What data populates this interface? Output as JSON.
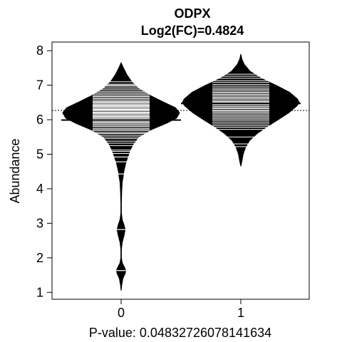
{
  "chart_data": {
    "type": "beanplot",
    "title": "ODPX",
    "subtitle": "Log2(FC)=0.4824",
    "ylabel": "Abundance",
    "xlabel": "P-value: 0.0483272607814163​4",
    "categories": [
      "0",
      "1"
    ],
    "yticks": [
      "1",
      "2",
      "3",
      "4",
      "5",
      "6",
      "7",
      "8"
    ],
    "ylim": [
      0.8,
      8.25
    ],
    "overall_mean": 6.27,
    "groups": [
      {
        "name": "0",
        "mean": 5.99,
        "median": 6.23,
        "range": [
          1.05,
          7.65
        ],
        "density": [
          [
            1.05,
            0.0
          ],
          [
            1.2,
            0.01
          ],
          [
            1.4,
            0.03
          ],
          [
            1.55,
            0.07
          ],
          [
            1.63,
            0.08
          ],
          [
            1.72,
            0.06
          ],
          [
            1.85,
            0.02
          ],
          [
            2.0,
            0.005
          ],
          [
            2.25,
            0.005
          ],
          [
            2.45,
            0.02
          ],
          [
            2.65,
            0.05
          ],
          [
            2.82,
            0.07
          ],
          [
            2.95,
            0.05
          ],
          [
            3.1,
            0.02
          ],
          [
            3.3,
            0.005
          ],
          [
            3.6,
            0.005
          ],
          [
            3.9,
            0.01
          ],
          [
            4.2,
            0.02
          ],
          [
            4.35,
            0.035
          ],
          [
            4.45,
            0.04
          ],
          [
            4.6,
            0.06
          ],
          [
            4.75,
            0.08
          ],
          [
            4.9,
            0.11
          ],
          [
            5.0,
            0.13
          ],
          [
            5.1,
            0.15
          ],
          [
            5.3,
            0.21
          ],
          [
            5.5,
            0.3
          ],
          [
            5.7,
            0.5
          ],
          [
            5.9,
            0.78
          ],
          [
            6.05,
            0.95
          ],
          [
            6.2,
            1.0
          ],
          [
            6.35,
            0.93
          ],
          [
            6.5,
            0.74
          ],
          [
            6.7,
            0.5
          ],
          [
            6.9,
            0.3
          ],
          [
            7.1,
            0.18
          ],
          [
            7.3,
            0.1
          ],
          [
            7.5,
            0.04
          ],
          [
            7.65,
            0.0
          ]
        ],
        "observations": [
          1.63,
          2.82,
          4.43,
          4.78,
          4.92,
          5.02,
          5.08,
          5.12,
          5.25,
          5.32,
          5.38,
          5.45,
          5.5,
          5.55,
          5.6,
          5.63,
          5.68,
          5.72,
          5.75,
          5.8,
          5.83,
          5.87,
          5.9,
          5.93,
          5.96,
          5.99,
          6.02,
          6.05,
          6.08,
          6.1,
          6.12,
          6.15,
          6.18,
          6.2,
          6.22,
          6.25,
          6.28,
          6.3,
          6.33,
          6.35,
          6.38,
          6.4,
          6.42,
          6.45,
          6.48,
          6.5,
          6.53,
          6.56,
          6.6,
          6.63,
          6.67,
          6.7,
          6.74,
          6.78,
          6.82,
          6.87,
          6.92,
          6.97,
          7.0,
          7.03,
          7.1
        ]
      },
      {
        "name": "1",
        "mean": 6.47,
        "median": 6.5,
        "range": [
          4.65,
          7.9
        ],
        "density": [
          [
            4.65,
            0.0
          ],
          [
            4.8,
            0.02
          ],
          [
            5.0,
            0.04
          ],
          [
            5.2,
            0.08
          ],
          [
            5.4,
            0.15
          ],
          [
            5.6,
            0.28
          ],
          [
            5.8,
            0.45
          ],
          [
            6.0,
            0.64
          ],
          [
            6.2,
            0.82
          ],
          [
            6.4,
            0.96
          ],
          [
            6.5,
            1.0
          ],
          [
            6.6,
            0.97
          ],
          [
            6.8,
            0.83
          ],
          [
            7.0,
            0.6
          ],
          [
            7.2,
            0.35
          ],
          [
            7.4,
            0.16
          ],
          [
            7.6,
            0.06
          ],
          [
            7.75,
            0.02
          ],
          [
            7.9,
            0.0
          ]
        ],
        "observations": [
          5.22,
          5.3,
          5.5,
          5.72,
          5.78,
          5.83,
          5.88,
          5.93,
          5.98,
          6.02,
          6.06,
          6.1,
          6.14,
          6.18,
          6.22,
          6.25,
          6.28,
          6.32,
          6.35,
          6.38,
          6.42,
          6.45,
          6.48,
          6.5,
          6.53,
          6.56,
          6.6,
          6.63,
          6.66,
          6.7,
          6.73,
          6.77,
          6.8,
          6.84,
          6.88,
          6.92,
          6.97,
          7.02,
          7.08,
          7.13,
          7.2,
          7.26,
          7.32
        ]
      }
    ],
    "legend": "none",
    "grid": false
  }
}
